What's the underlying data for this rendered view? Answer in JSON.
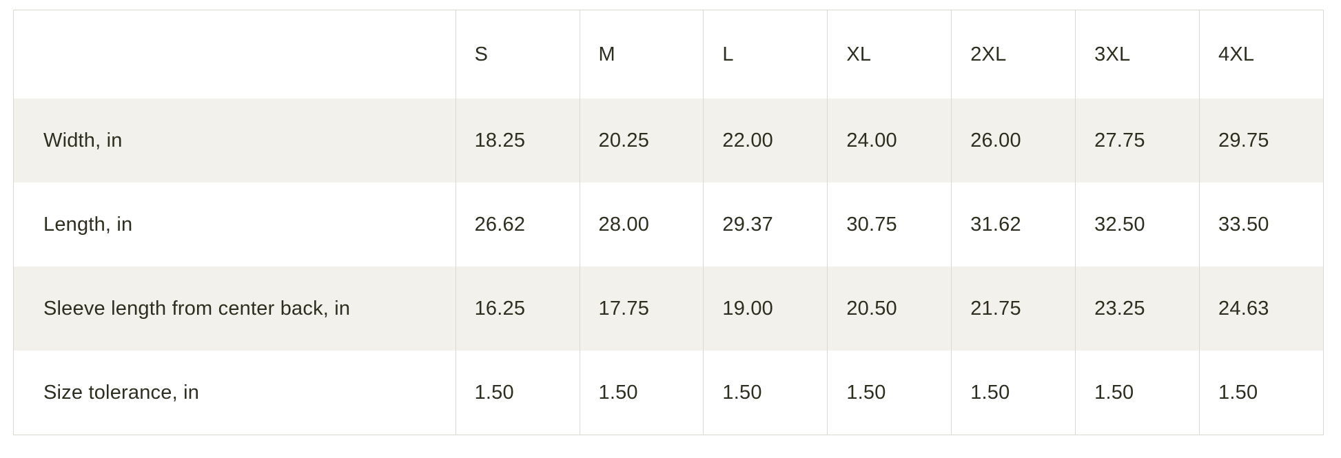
{
  "size_chart": {
    "columns": [
      "",
      "S",
      "M",
      "L",
      "XL",
      "2XL",
      "3XL",
      "4XL"
    ],
    "rows": [
      {
        "label": "Width, in",
        "values": [
          "18.25",
          "20.25",
          "22.00",
          "24.00",
          "26.00",
          "27.75",
          "29.75"
        ]
      },
      {
        "label": "Length, in",
        "values": [
          "26.62",
          "28.00",
          "29.37",
          "30.75",
          "31.62",
          "32.50",
          "33.50"
        ]
      },
      {
        "label": "Sleeve length from center back, in",
        "values": [
          "16.25",
          "17.75",
          "19.00",
          "20.50",
          "21.75",
          "23.25",
          "24.63"
        ]
      },
      {
        "label": "Size tolerance, in",
        "values": [
          "1.50",
          "1.50",
          "1.50",
          "1.50",
          "1.50",
          "1.50",
          "1.50"
        ]
      }
    ],
    "colors": {
      "text": "#2e2e20",
      "border": "#d9d8d2",
      "shaded_row_background": "#f2f1ec",
      "background": "#ffffff"
    }
  }
}
